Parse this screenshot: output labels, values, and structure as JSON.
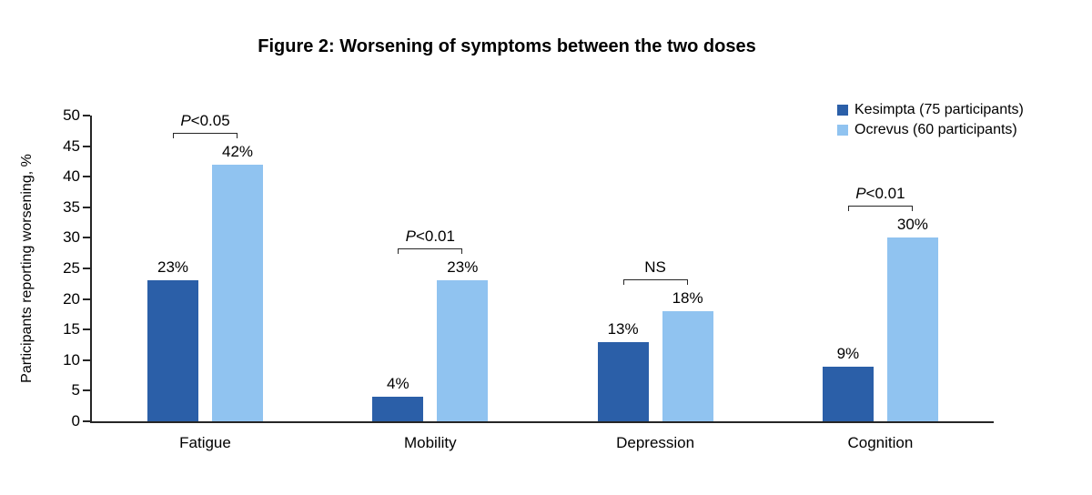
{
  "chart_data": {
    "type": "bar",
    "title": "Figure 2: Worsening of symptoms between the two doses",
    "xlabel": "",
    "ylabel": "Participants reporting worsening, %",
    "ylim": [
      0,
      50
    ],
    "yticks": [
      0,
      5,
      10,
      15,
      20,
      25,
      30,
      35,
      40,
      45,
      50
    ],
    "grid": false,
    "legend_position": "top-right",
    "categories": [
      "Fatigue",
      "Mobility",
      "Depression",
      "Cognition"
    ],
    "series": [
      {
        "name": "Kesimpta (75 participants)",
        "color": "#2B5FA8",
        "values": [
          23,
          4,
          13,
          9
        ]
      },
      {
        "name": "Ocrevus (60 participants)",
        "color": "#90C3F0",
        "values": [
          42,
          23,
          18,
          30
        ]
      }
    ],
    "value_labels": [
      [
        "23%",
        "4%",
        "13%",
        "9%"
      ],
      [
        "42%",
        "23%",
        "18%",
        "30%"
      ]
    ],
    "significance": [
      "P<0.05",
      "P<0.01",
      "NS",
      "P<0.01"
    ],
    "axis_color": "#262626",
    "text_color": "#000000"
  }
}
